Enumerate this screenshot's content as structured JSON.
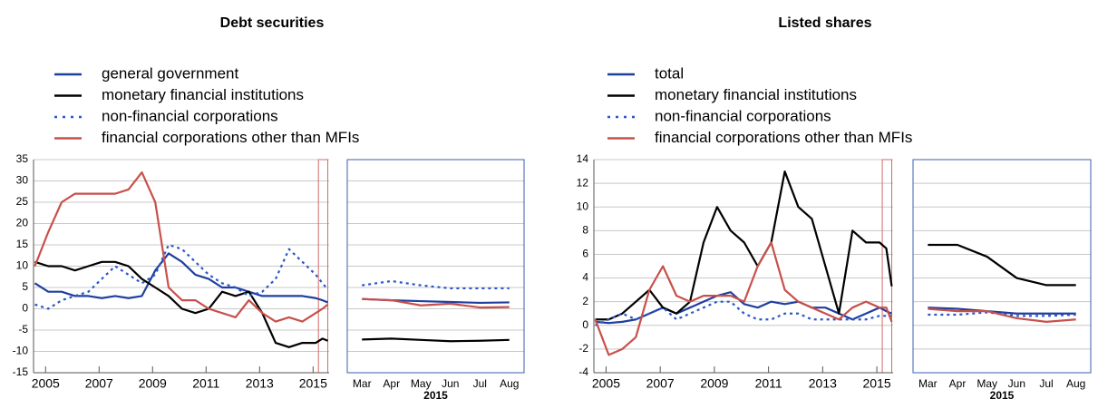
{
  "chart_data": [
    {
      "type": "line",
      "title": "Debt securities",
      "x": [
        2004.6,
        2005.1,
        2005.6,
        2006.1,
        2006.6,
        2007.1,
        2007.6,
        2008.1,
        2008.6,
        2009.1,
        2009.6,
        2010.1,
        2010.6,
        2011.1,
        2011.6,
        2012.1,
        2012.6,
        2013.1,
        2013.6,
        2014.1,
        2014.6,
        2015.1,
        2015.35,
        2015.55
      ],
      "xlim": [
        2004.55,
        2015.6
      ],
      "xticks": [
        2005,
        2007,
        2009,
        2011,
        2013,
        2015
      ],
      "ylim": [
        -15,
        35
      ],
      "yticks": [
        -15,
        -10,
        -5,
        0,
        5,
        10,
        15,
        20,
        25,
        30,
        35
      ],
      "grid": true,
      "highlight_x": [
        2015.2,
        2015.55
      ],
      "series": [
        {
          "name": "general government",
          "color": "#1f3f9f",
          "style": "solid",
          "values": [
            6,
            4,
            4,
            3,
            3,
            2.5,
            3,
            2.5,
            3,
            9,
            13,
            11,
            8,
            7,
            5,
            5,
            4,
            3,
            3,
            3,
            3,
            2.5,
            2,
            1.5
          ]
        },
        {
          "name": "monetary financial institutions",
          "color": "#000000",
          "style": "solid",
          "values": [
            11,
            10,
            10,
            9,
            10,
            11,
            11,
            10,
            7,
            5,
            3,
            0,
            -1,
            0,
            4,
            3,
            4,
            -1,
            -8,
            -9,
            -8,
            -8,
            -7,
            -7.5
          ]
        },
        {
          "name": "non-financial corporations",
          "color": "#2a56c6",
          "style": "dotted",
          "values": [
            1,
            0,
            2,
            3,
            4,
            7,
            10,
            8,
            6,
            8,
            15,
            14,
            11,
            8,
            6,
            5,
            3,
            4,
            7,
            14,
            11,
            8,
            6,
            4.5
          ]
        },
        {
          "name": "financial corporations other than MFIs",
          "color": "#c8504b",
          "style": "solid",
          "values": [
            10,
            18,
            25,
            27,
            27,
            27,
            27,
            28,
            32,
            25,
            5,
            2,
            2,
            0,
            -1,
            -2,
            2,
            -1,
            -3,
            -2,
            -3,
            -1,
            0,
            1
          ]
        }
      ]
    },
    {
      "type": "line",
      "categories": [
        "Mar",
        "Apr",
        "May",
        "Jun",
        "Jul",
        "Aug"
      ],
      "x_sublabel": "2015",
      "ylim": [
        -15,
        35
      ],
      "yticks": [
        -15,
        -10,
        -5,
        0,
        5,
        10,
        15,
        20,
        25,
        30,
        35
      ],
      "grid": true,
      "series": [
        {
          "color": "#1f3f9f",
          "style": "solid",
          "values": [
            2.3,
            2.0,
            1.8,
            1.6,
            1.4,
            1.5
          ]
        },
        {
          "color": "#000000",
          "style": "solid",
          "values": [
            -7.2,
            -7.0,
            -7.3,
            -7.6,
            -7.5,
            -7.3
          ]
        },
        {
          "color": "#2a56c6",
          "style": "dotted",
          "values": [
            5.5,
            6.5,
            5.5,
            4.8,
            4.8,
            4.8
          ]
        },
        {
          "color": "#c8504b",
          "style": "solid",
          "values": [
            2.3,
            2.0,
            0.8,
            1.2,
            0.3,
            0.4
          ]
        }
      ]
    },
    {
      "type": "line",
      "title": "Listed shares",
      "x": [
        2004.6,
        2005.1,
        2005.6,
        2006.1,
        2006.6,
        2007.1,
        2007.6,
        2008.1,
        2008.6,
        2009.1,
        2009.6,
        2010.1,
        2010.6,
        2011.1,
        2011.6,
        2012.1,
        2012.6,
        2013.1,
        2013.6,
        2014.1,
        2014.6,
        2015.1,
        2015.35,
        2015.55
      ],
      "xlim": [
        2004.55,
        2015.6
      ],
      "xticks": [
        2005,
        2007,
        2009,
        2011,
        2013,
        2015
      ],
      "ylim": [
        -4,
        14
      ],
      "yticks": [
        -4,
        -2,
        0,
        2,
        4,
        6,
        8,
        10,
        12,
        14
      ],
      "grid": true,
      "highlight_x": [
        2015.2,
        2015.55
      ],
      "series": [
        {
          "name": "total",
          "color": "#1f3f9f",
          "style": "solid",
          "values": [
            0.3,
            0.2,
            0.3,
            0.5,
            1,
            1.5,
            1,
            1.5,
            2,
            2.5,
            2.8,
            1.8,
            1.5,
            2,
            1.8,
            2,
            1.5,
            1.5,
            1,
            0.5,
            1,
            1.5,
            1.2,
            1
          ]
        },
        {
          "name": "monetary financial institutions",
          "color": "#000000",
          "style": "solid",
          "values": [
            0.5,
            0.5,
            1,
            2,
            3,
            1.5,
            1,
            2,
            7,
            10,
            8,
            7,
            5,
            7,
            13,
            10,
            9,
            5,
            1,
            8,
            7,
            7,
            6.5,
            3.3
          ]
        },
        {
          "name": "non-financial corporations",
          "color": "#2a56c6",
          "style": "dotted",
          "values": [
            0,
            0.5,
            1,
            0.5,
            1,
            1.5,
            0.5,
            1,
            1.5,
            2,
            2,
            1,
            0.5,
            0.5,
            1,
            1,
            0.5,
            0.5,
            0.5,
            0.5,
            0.5,
            0.8,
            0.8,
            0.8
          ]
        },
        {
          "name": "financial corporations other than MFIs",
          "color": "#c8504b",
          "style": "solid",
          "values": [
            0.5,
            -2.5,
            -2,
            -1,
            3,
            5,
            2.5,
            2,
            2.5,
            2.5,
            2.5,
            2,
            5,
            7,
            3,
            2,
            1.5,
            1,
            0.5,
            1.5,
            2,
            1.5,
            1.5,
            0.3
          ]
        }
      ]
    },
    {
      "type": "line",
      "categories": [
        "Mar",
        "Apr",
        "May",
        "Jun",
        "Jul",
        "Aug"
      ],
      "x_sublabel": "2015",
      "ylim": [
        -4,
        14
      ],
      "yticks": [
        -4,
        -2,
        0,
        2,
        4,
        6,
        8,
        10,
        12,
        14
      ],
      "grid": true,
      "series": [
        {
          "color": "#1f3f9f",
          "style": "solid",
          "values": [
            1.5,
            1.4,
            1.2,
            1.0,
            1.0,
            1.0
          ]
        },
        {
          "color": "#000000",
          "style": "solid",
          "values": [
            6.8,
            6.8,
            5.8,
            4.0,
            3.4,
            3.4
          ]
        },
        {
          "color": "#2a56c6",
          "style": "dotted",
          "values": [
            0.9,
            0.9,
            1.1,
            0.8,
            0.8,
            0.9
          ]
        },
        {
          "color": "#c8504b",
          "style": "solid",
          "values": [
            1.4,
            1.2,
            1.2,
            0.6,
            0.3,
            0.5
          ]
        }
      ]
    }
  ]
}
